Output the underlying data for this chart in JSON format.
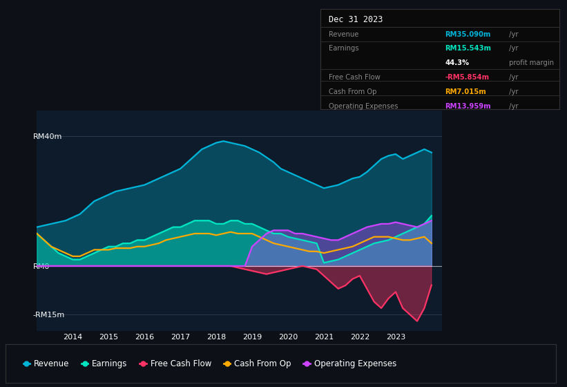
{
  "bg_color": "#0d1117",
  "plot_bg_color": "#0d1b2a",
  "ylim": [
    -20,
    48
  ],
  "yticks_labels": [
    "RM40m",
    "RM0",
    "-RM15m"
  ],
  "yticks_values": [
    40,
    0,
    -15
  ],
  "xticks": [
    2014,
    2015,
    2016,
    2017,
    2018,
    2019,
    2020,
    2021,
    2022,
    2023
  ],
  "xlim": [
    2013.0,
    2024.3
  ],
  "info_box": {
    "title": "Dec 31 2023",
    "rows": [
      {
        "label": "Revenue",
        "value": "RM35.090m",
        "suffix": " /yr",
        "label_color": "#888888",
        "value_color": "#00b4d8",
        "suffix_color": "#888888"
      },
      {
        "label": "Earnings",
        "value": "RM15.543m",
        "suffix": " /yr",
        "label_color": "#888888",
        "value_color": "#00e5c0",
        "suffix_color": "#888888"
      },
      {
        "label": "",
        "value": "44.3%",
        "suffix": " profit margin",
        "label_color": "#888888",
        "value_color": "#ffffff",
        "suffix_color": "#888888"
      },
      {
        "label": "Free Cash Flow",
        "value": "-RM5.854m",
        "suffix": " /yr",
        "label_color": "#888888",
        "value_color": "#ff3366",
        "suffix_color": "#888888"
      },
      {
        "label": "Cash From Op",
        "value": "RM7.015m",
        "suffix": " /yr",
        "label_color": "#888888",
        "value_color": "#ffaa00",
        "suffix_color": "#888888"
      },
      {
        "label": "Operating Expenses",
        "value": "RM13.959m",
        "suffix": " /yr",
        "label_color": "#888888",
        "value_color": "#cc44ff",
        "suffix_color": "#888888"
      }
    ]
  },
  "legend": [
    {
      "label": "Revenue",
      "color": "#00b4d8"
    },
    {
      "label": "Earnings",
      "color": "#00e5c0"
    },
    {
      "label": "Free Cash Flow",
      "color": "#ff3366"
    },
    {
      "label": "Cash From Op",
      "color": "#ffaa00"
    },
    {
      "label": "Operating Expenses",
      "color": "#cc44ff"
    }
  ],
  "series": {
    "x": [
      2013.0,
      2013.2,
      2013.4,
      2013.6,
      2013.8,
      2014.0,
      2014.2,
      2014.4,
      2014.6,
      2014.8,
      2015.0,
      2015.2,
      2015.4,
      2015.6,
      2015.8,
      2016.0,
      2016.2,
      2016.4,
      2016.6,
      2016.8,
      2017.0,
      2017.2,
      2017.4,
      2017.6,
      2017.8,
      2018.0,
      2018.2,
      2018.4,
      2018.6,
      2018.8,
      2019.0,
      2019.2,
      2019.4,
      2019.6,
      2019.8,
      2020.0,
      2020.2,
      2020.4,
      2020.6,
      2020.8,
      2021.0,
      2021.2,
      2021.4,
      2021.6,
      2021.8,
      2022.0,
      2022.2,
      2022.4,
      2022.6,
      2022.8,
      2023.0,
      2023.2,
      2023.4,
      2023.6,
      2023.8,
      2024.0
    ],
    "revenue": [
      12,
      12.5,
      13,
      13.5,
      14,
      15,
      16,
      18,
      20,
      21,
      22,
      23,
      23.5,
      24,
      24.5,
      25,
      26,
      27,
      28,
      29,
      30,
      32,
      34,
      36,
      37,
      38,
      38.5,
      38,
      37.5,
      37,
      36,
      35,
      33.5,
      32,
      30,
      29,
      28,
      27,
      26,
      25,
      24,
      24.5,
      25,
      26,
      27,
      27.5,
      29,
      31,
      33,
      34,
      34.5,
      33,
      34,
      35,
      36,
      35
    ],
    "earnings": [
      10,
      8,
      6,
      4,
      3,
      2,
      2,
      3,
      4,
      5,
      6,
      6,
      7,
      7,
      8,
      8,
      9,
      10,
      11,
      12,
      12,
      13,
      14,
      14,
      14,
      13,
      13,
      14,
      14,
      13,
      13,
      12,
      11,
      10,
      10,
      9,
      8.5,
      8,
      7.5,
      7,
      1,
      1.5,
      2,
      3,
      4,
      5,
      6,
      7,
      7.5,
      8,
      9,
      10,
      11,
      12,
      13,
      15.5
    ],
    "free_cash_flow": [
      0,
      0,
      0,
      0,
      0,
      0,
      0,
      0,
      0,
      0,
      0,
      0,
      0,
      0,
      0,
      0,
      0,
      0,
      0,
      0,
      0,
      0,
      0,
      0,
      0,
      0,
      0,
      0,
      -0.5,
      -1,
      -1.5,
      -2,
      -2.5,
      -2,
      -1.5,
      -1,
      -0.5,
      0,
      -0.5,
      -1,
      -3,
      -5,
      -7,
      -6,
      -4,
      -3,
      -7,
      -11,
      -13,
      -10,
      -8,
      -13,
      -15,
      -17,
      -13,
      -5.9
    ],
    "cash_from_op": [
      10,
      8,
      6,
      5,
      4,
      3,
      3,
      4,
      5,
      5,
      5,
      5.5,
      5.5,
      5.5,
      6,
      6,
      6.5,
      7,
      8,
      8.5,
      9,
      9.5,
      10,
      10,
      10,
      9.5,
      10,
      10.5,
      10,
      10,
      10,
      9,
      8,
      7,
      6.5,
      6,
      5.5,
      5,
      4.5,
      4.5,
      4,
      4.5,
      5,
      5.5,
      6,
      7,
      8,
      9,
      9,
      9,
      8.5,
      8,
      8,
      8.5,
      9,
      7
    ],
    "operating_expenses": [
      0,
      0,
      0,
      0,
      0,
      0,
      0,
      0,
      0,
      0,
      0,
      0,
      0,
      0,
      0,
      0,
      0,
      0,
      0,
      0,
      0,
      0,
      0,
      0,
      0,
      0,
      0,
      0,
      0,
      0,
      6,
      8,
      10,
      11,
      11,
      11,
      10,
      10,
      9.5,
      9,
      8.5,
      8,
      8,
      9,
      10,
      11,
      12,
      12.5,
      13,
      13,
      13.5,
      13,
      12.5,
      12,
      13,
      14
    ]
  }
}
